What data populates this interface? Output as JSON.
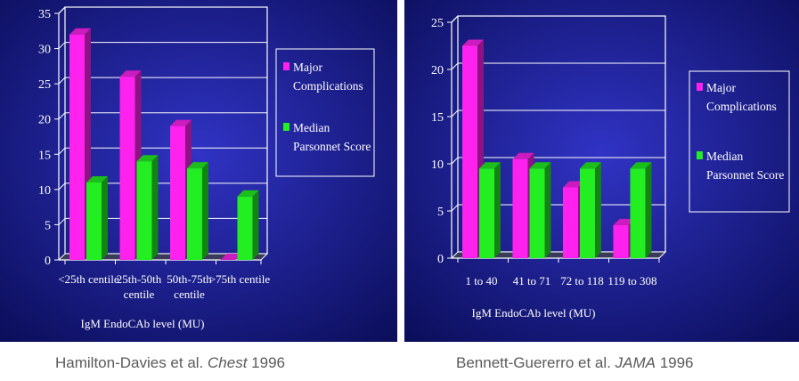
{
  "colors": {
    "background_center": "#3033c4",
    "background_edge": "#0a0d57",
    "major": "#ff22ee",
    "median": "#22ee22",
    "axis": "#ffffff",
    "caption": "#5a5a5a"
  },
  "chart_data": [
    {
      "type": "bar",
      "categories": [
        "<25th centile",
        "25th-50th centile",
        "50th-75th centile",
        ">75th centile"
      ],
      "category_lines": [
        [
          "<25th centile"
        ],
        [
          "25th-50th",
          "centile"
        ],
        [
          "50th-75th",
          "centile"
        ],
        [
          ">75th centile"
        ]
      ],
      "series": [
        {
          "name": "Major Complications",
          "values": [
            32,
            26,
            19,
            0
          ]
        },
        {
          "name": "Median Parsonnet Score",
          "values": [
            11,
            14,
            13,
            9
          ]
        }
      ],
      "legend": [
        [
          "Major",
          "Complications"
        ],
        [
          "Median",
          "Parsonnet Score"
        ]
      ],
      "xlabel": "IgM EndoCAb level (MU)",
      "ylim": [
        0,
        35
      ],
      "yticks": [
        0,
        5,
        10,
        15,
        20,
        25,
        30,
        35
      ],
      "grid": true,
      "legend_position": "right"
    },
    {
      "type": "bar",
      "categories": [
        "1 to 40",
        "41 to 71",
        "72 to 118",
        "119 to 308"
      ],
      "category_lines": [
        [
          "1 to 40"
        ],
        [
          "41 to 71"
        ],
        [
          "72 to 118"
        ],
        [
          "119 to 308"
        ]
      ],
      "series": [
        {
          "name": "Major Complications",
          "values": [
            22.5,
            10.5,
            7.5,
            3.5
          ]
        },
        {
          "name": "Median Parsonnet Score",
          "values": [
            9.5,
            9.5,
            9.5,
            9.5
          ]
        }
      ],
      "legend": [
        [
          "Major",
          "Complications"
        ],
        [
          "Median",
          "Parsonnet Score"
        ]
      ],
      "xlabel": "IgM EndoCAb level (MU)",
      "ylim": [
        0,
        25
      ],
      "yticks": [
        0,
        5,
        10,
        15,
        20,
        25
      ],
      "grid": true,
      "legend_position": "right"
    }
  ],
  "captions": {
    "left": {
      "authors": "Hamilton-Davies et al.",
      "journal": "Chest",
      "year": "1996"
    },
    "right": {
      "authors": "Bennett-Guererro et al.",
      "journal": "JAMA",
      "year": "1996"
    }
  }
}
